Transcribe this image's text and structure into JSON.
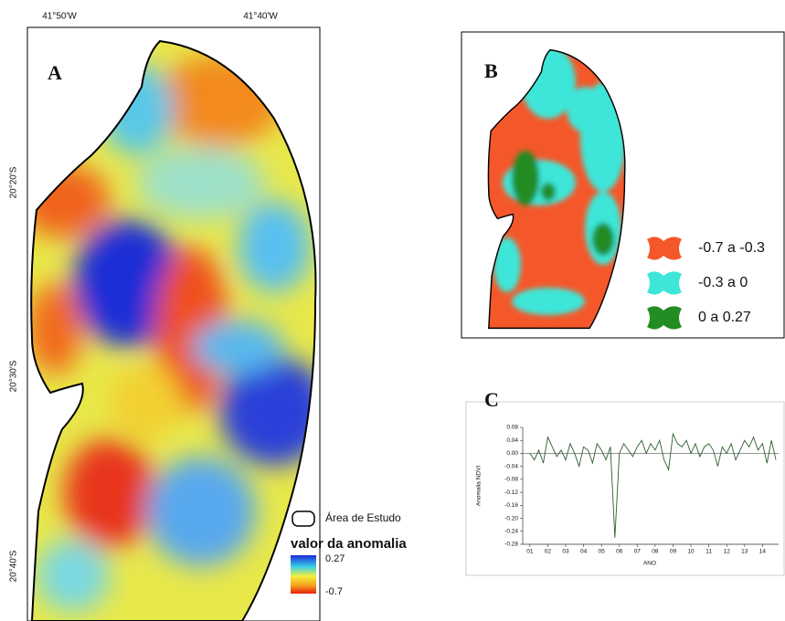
{
  "panel_a": {
    "label": "A",
    "lon_ticks": [
      "41°50'W",
      "41°40'W"
    ],
    "lat_ticks": [
      "20°20'S",
      "20°30'S",
      "20°40'S"
    ],
    "legend": {
      "area": "Área de Estudo",
      "title": "valor da anomalia",
      "max": "0.27",
      "min": "-0.7"
    }
  },
  "panel_b": {
    "label": "B",
    "classes": [
      {
        "label": "-0.7 a -0.3",
        "color": "#f4582a"
      },
      {
        "label": "-0.3 a 0",
        "color": "#3de6d8"
      },
      {
        "label": "0 a 0.27",
        "color": "#238c23"
      }
    ]
  },
  "chart_data": {
    "type": "line",
    "label": "C",
    "ylabel": "Anomalia NDVI",
    "xlabel": "ANO",
    "x": [
      2001,
      2001.25,
      2001.5,
      2001.75,
      2002,
      2002.25,
      2002.5,
      2002.75,
      2003,
      2003.25,
      2003.5,
      2003.75,
      2004,
      2004.25,
      2004.5,
      2004.75,
      2005,
      2005.25,
      2005.5,
      2005.75,
      2006,
      2006.25,
      2006.5,
      2006.75,
      2007,
      2007.25,
      2007.5,
      2007.75,
      2008,
      2008.25,
      2008.5,
      2008.75,
      2009,
      2009.25,
      2009.5,
      2009.75,
      2010,
      2010.25,
      2010.5,
      2010.75,
      2011,
      2011.25,
      2011.5,
      2011.75,
      2012,
      2012.25,
      2012.5,
      2012.75,
      2013,
      2013.25,
      2013.5,
      2013.75,
      2014,
      2014.25,
      2014.5,
      2014.75
    ],
    "series": [
      {
        "color": "#2e5e2e",
        "values": [
          0.0,
          -0.02,
          0.01,
          -0.03,
          0.05,
          0.02,
          -0.01,
          0.01,
          -0.02,
          0.03,
          0.0,
          -0.04,
          0.02,
          0.01,
          -0.03,
          0.03,
          0.01,
          -0.02,
          0.02,
          -0.26,
          0.0,
          0.03,
          0.01,
          -0.01,
          0.02,
          0.04,
          0.0,
          0.03,
          0.01,
          0.04,
          -0.02,
          -0.05,
          0.06,
          0.03,
          0.02,
          0.04,
          0.0,
          0.03,
          -0.01,
          0.02,
          0.03,
          0.01,
          -0.04,
          0.02,
          0.0,
          0.03,
          -0.02,
          0.01,
          0.04,
          0.02,
          0.05,
          0.01,
          0.03,
          -0.03,
          0.04,
          -0.02
        ]
      }
    ],
    "xlim": [
      2000.6,
      2014.9
    ],
    "ylim": [
      -0.28,
      0.08
    ],
    "yticks": [
      0.08,
      0.04,
      {
        "value": 0,
        "label": "0.00"
      },
      -0.04,
      -0.08,
      -0.12,
      -0.16,
      {
        "value": -0.2,
        "label": "-0.20"
      },
      -0.24,
      -0.28
    ],
    "xticks": [
      {
        "value": 2001,
        "label": "01"
      },
      {
        "value": 2002,
        "label": "02"
      },
      {
        "value": 2003,
        "label": "03"
      },
      {
        "value": 2004,
        "label": "04"
      },
      {
        "value": 2005,
        "label": "05"
      },
      {
        "value": 2006,
        "label": "06"
      },
      {
        "value": 2007,
        "label": "07"
      },
      {
        "value": 2008,
        "label": "08"
      },
      {
        "value": 2009,
        "label": "09"
      },
      {
        "value": 2010,
        "label": "10"
      },
      {
        "value": 2011,
        "label": "11"
      },
      {
        "value": 2012,
        "label": "12"
      },
      {
        "value": 2013,
        "label": "13"
      },
      {
        "value": 2014,
        "label": "14"
      }
    ]
  }
}
